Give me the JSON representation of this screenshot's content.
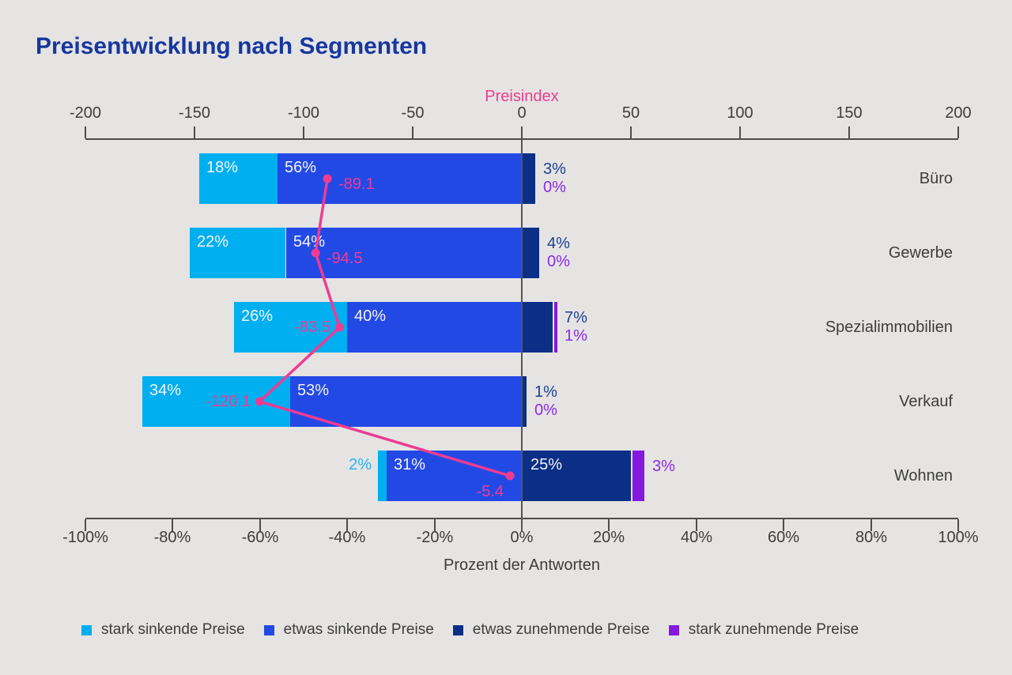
{
  "title": "Preisentwicklung nach Segmenten",
  "colors": {
    "background": "#E5E4E3",
    "title": "#17379E",
    "axis": "#4D4D4D",
    "zero_line": "#55565A",
    "text": "#3D3D3D",
    "bar_label": "#F4F3F2",
    "pink": "#EE3C92"
  },
  "chart_data": {
    "type": "bar",
    "variant": "horizontal-diverging-stacked",
    "title": "Preisentwicklung nach Segmenten",
    "categories": [
      "Büro",
      "Gewerbe",
      "Spezialimmobilien",
      "Verkauf",
      "Wohnen"
    ],
    "series": [
      {
        "name": "stark sinkende Preise",
        "color": "#00AFF0",
        "label_color": "#2BB3EF",
        "values": [
          18,
          22,
          26,
          34,
          2
        ]
      },
      {
        "name": "etwas sinkende Preise",
        "color": "#2349E5",
        "label_color": "#2349E5",
        "values": [
          56,
          54,
          40,
          53,
          31
        ]
      },
      {
        "name": "etwas zunehmende Preise",
        "color": "#0B2F87",
        "label_color": "#1D4090",
        "values": [
          3,
          4,
          7,
          1,
          25
        ]
      },
      {
        "name": "stark zunehmende Preise",
        "color": "#8519DF",
        "label_color": "#8B2BE8",
        "values": [
          0,
          0,
          1,
          0,
          3
        ]
      }
    ],
    "line_overlay": {
      "name": "Preisindex",
      "color": "#EE3C92",
      "values": [
        -89.1,
        -94.5,
        -83.5,
        -120.1,
        -5.4
      ],
      "label_sides": [
        "right",
        "right",
        "left",
        "left",
        "below-left"
      ]
    },
    "top_axis": {
      "title": "Preisindex",
      "min": -200,
      "max": 200,
      "ticks": [
        -200,
        -150,
        -100,
        -50,
        0,
        50,
        100,
        150,
        200
      ]
    },
    "bottom_axis": {
      "title": "Prozent der Antworten",
      "min": -100,
      "max": 100,
      "ticks": [
        -100,
        -80,
        -60,
        -40,
        -20,
        0,
        20,
        40,
        60,
        80,
        100
      ],
      "suffix": "%"
    },
    "value_suffix": "%",
    "grid": false,
    "legend_position": "bottom"
  }
}
